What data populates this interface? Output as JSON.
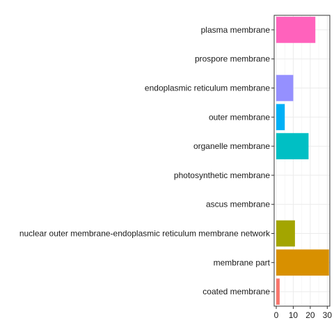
{
  "chart_data": {
    "type": "bar",
    "orientation": "horizontal",
    "categories": [
      "plasma membrane",
      "prospore membrane",
      "endoplasmic reticulum membrane",
      "outer membrane",
      "organelle membrane",
      "photosynthetic membrane",
      "ascus membrane",
      "nuclear outer membrane-endoplasmic reticulum membrane network",
      "membrane part",
      "coated membrane"
    ],
    "values": [
      23,
      0,
      10,
      5,
      19,
      0,
      0,
      11,
      31,
      2
    ],
    "colors": [
      "#FF62BC",
      "#E76BF3",
      "#9590FF",
      "#00B0F6",
      "#00BFC4",
      "#00BF7D",
      "#39B600",
      "#A3A500",
      "#D89000",
      "#F8766D"
    ],
    "xlim": [
      0,
      31.5
    ],
    "xticks": [
      0,
      10,
      20,
      30
    ],
    "grid": true,
    "legend": "none",
    "title": "",
    "xlabel": "",
    "ylabel": ""
  }
}
